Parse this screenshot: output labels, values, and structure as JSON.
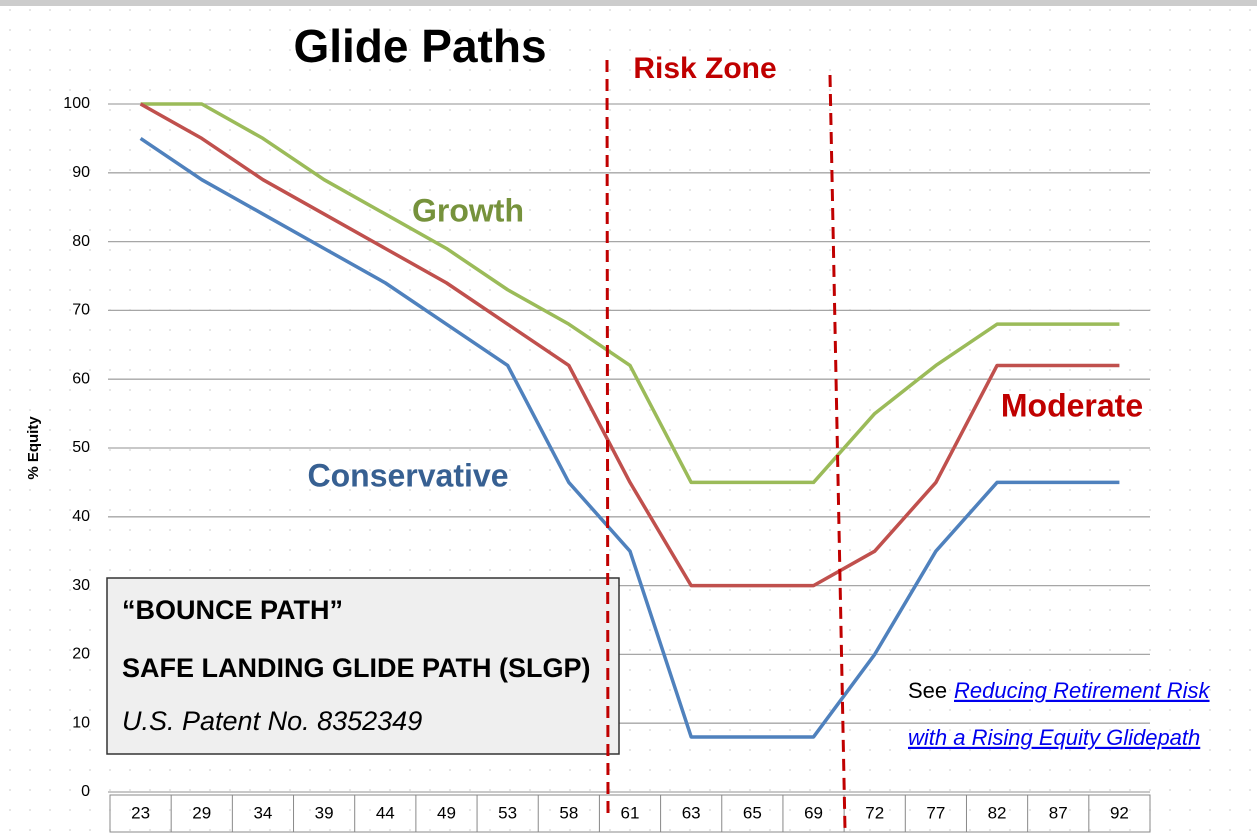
{
  "chart_data": {
    "type": "line",
    "title": "Glide Paths",
    "annotation": "Risk Zone",
    "y_label": "% Equity",
    "categories": [
      "23",
      "29",
      "34",
      "39",
      "44",
      "49",
      "53",
      "58",
      "61",
      "63",
      "65",
      "69",
      "72",
      "77",
      "82",
      "87",
      "92"
    ],
    "series": [
      {
        "name": "Growth",
        "color": "#9bbb59",
        "label_color": "#76923c",
        "values": [
          100,
          100,
          95,
          89,
          84,
          79,
          73,
          68,
          62,
          45,
          45,
          45,
          55,
          62,
          68,
          68,
          68
        ]
      },
      {
        "name": "Moderate",
        "color": "#c0504d",
        "label_color": "#c00000",
        "values": [
          100,
          95,
          89,
          84,
          79,
          74,
          68,
          62,
          45,
          30,
          30,
          30,
          35,
          45,
          62,
          62,
          62
        ]
      },
      {
        "name": "Conservative",
        "color": "#4f81bd",
        "label_color": "#376092",
        "values": [
          95,
          89,
          84,
          79,
          74,
          68,
          62,
          45,
          35,
          8,
          8,
          8,
          20,
          35,
          45,
          45,
          45
        ]
      }
    ],
    "ylim": [
      0,
      100
    ],
    "yticks": [
      0,
      10,
      20,
      30,
      40,
      50,
      60,
      70,
      80,
      90,
      100
    ],
    "grid": true
  },
  "callout": {
    "lines": [
      "“BOUNCE PATH”",
      "SAFE LANDING GLIDE PATH (SLGP)",
      "U.S. Patent No. 8352349"
    ]
  },
  "link": {
    "prefix": "See",
    "lines": [
      "Reducing Retirement Risk",
      "with a Rising Equity Glidepath"
    ]
  }
}
